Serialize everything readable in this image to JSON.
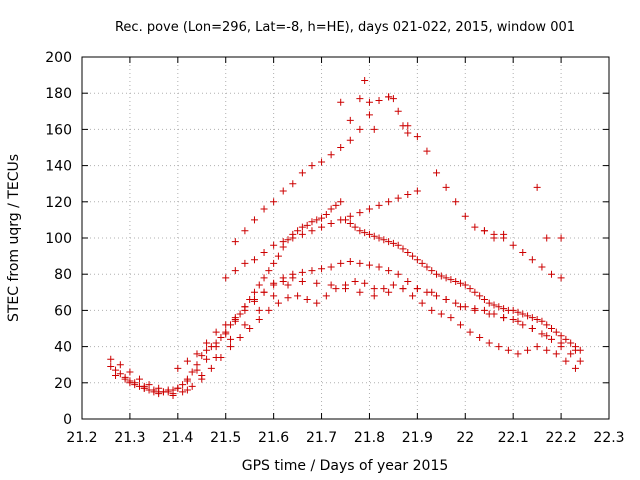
{
  "chart_data": {
    "type": "scatter",
    "title": "Rec. pove (Lon=296, Lat=-8, h=HE), days 021-022, 2015, window 001",
    "xlabel": "GPS time / Days of year 2015",
    "ylabel": "STEC from uqrg / TECUs",
    "xlim": [
      21.2,
      22.3
    ],
    "ylim": [
      0,
      200
    ],
    "x_ticks": [
      "21.2",
      "21.3",
      "21.4",
      "21.5",
      "21.6",
      "21.7",
      "21.8",
      "21.9",
      "22",
      "22.1",
      "22.2",
      "22.3"
    ],
    "y_ticks": [
      "0",
      "20",
      "40",
      "60",
      "80",
      "100",
      "120",
      "140",
      "160",
      "180",
      "200"
    ],
    "grid": true,
    "legend": "none",
    "marker": "plus",
    "color": "#cc0000",
    "series": [
      {
        "x": [
          21.26,
          21.27,
          21.28,
          21.29,
          21.3,
          21.31,
          21.32,
          21.33,
          21.34,
          21.35,
          21.36,
          21.37,
          21.38,
          21.39,
          21.4,
          21.41,
          21.42,
          21.43,
          21.44,
          21.45,
          21.46,
          21.47,
          21.48,
          21.49,
          21.5,
          21.51,
          21.52,
          21.53,
          21.54,
          21.55,
          21.56,
          21.57,
          21.58,
          21.59,
          21.6,
          21.61,
          21.62,
          21.63,
          21.64,
          21.65,
          21.66,
          21.67,
          21.68,
          21.69,
          21.7,
          21.71,
          21.72,
          21.73,
          21.74,
          21.75,
          21.76,
          21.77,
          21.78,
          21.79,
          21.8,
          21.81,
          21.82,
          21.83,
          21.84,
          21.85,
          21.86,
          21.87,
          21.88,
          21.89,
          21.9,
          21.91,
          21.92,
          21.93,
          21.94,
          21.95,
          21.96,
          21.97,
          21.98,
          21.99,
          22.0,
          22.01,
          22.02,
          22.03,
          22.04,
          22.05,
          22.06,
          22.07,
          22.08,
          22.09,
          22.1,
          22.11,
          22.12,
          22.13,
          22.14,
          22.15,
          22.16,
          22.17,
          22.18,
          22.19,
          22.2,
          22.21,
          22.22,
          22.23,
          22.24
        ],
        "y": [
          29,
          27,
          25,
          23,
          21,
          19,
          18,
          17,
          16,
          15,
          15,
          15,
          15,
          16,
          17,
          19,
          22,
          26,
          30,
          35,
          38,
          40,
          42,
          45,
          48,
          52,
          55,
          58,
          62,
          66,
          70,
          74,
          78,
          82,
          86,
          90,
          95,
          99,
          102,
          104,
          106,
          107,
          109,
          110,
          111,
          113,
          116,
          118,
          120,
          110,
          108,
          106,
          104,
          103,
          102,
          101,
          100,
          99,
          98,
          97,
          96,
          94,
          92,
          90,
          88,
          86,
          84,
          82,
          80,
          79,
          78,
          77,
          76,
          75,
          74,
          72,
          70,
          68,
          66,
          64,
          63,
          62,
          61,
          60,
          60,
          59,
          58,
          57,
          56,
          55,
          54,
          52,
          50,
          48,
          46,
          44,
          42,
          40,
          38
        ]
      },
      {
        "x": [
          21.26,
          21.28,
          21.3,
          21.32,
          21.34,
          21.36,
          21.38,
          21.4,
          21.42,
          21.44,
          21.46,
          21.48,
          21.5,
          21.52,
          21.54,
          21.56,
          21.58,
          21.6,
          21.62,
          21.64,
          21.66,
          21.68,
          21.7,
          21.72,
          21.74,
          21.76,
          21.78,
          21.8,
          21.82,
          21.84,
          21.86,
          21.88,
          21.9,
          21.92,
          21.94,
          21.96,
          21.98,
          22.0,
          22.02,
          22.04,
          22.06,
          22.08,
          22.1,
          22.12,
          22.14,
          22.16,
          22.18,
          22.2,
          22.22,
          22.24
        ],
        "y": [
          33,
          30,
          26,
          22,
          19,
          17,
          16,
          17,
          21,
          27,
          33,
          40,
          47,
          54,
          60,
          65,
          70,
          75,
          78,
          80,
          81,
          82,
          83,
          84,
          86,
          87,
          86,
          85,
          84,
          82,
          80,
          76,
          72,
          70,
          68,
          66,
          64,
          62,
          61,
          60,
          58,
          56,
          55,
          52,
          50,
          47,
          44,
          40,
          36,
          32
        ]
      },
      {
        "x": [
          21.27,
          21.29,
          21.31,
          21.33,
          21.35,
          21.37,
          21.39,
          21.41,
          21.43,
          21.45,
          21.47,
          21.49,
          21.51,
          21.53,
          21.55,
          21.57,
          21.59,
          21.61,
          21.63,
          21.65,
          21.67,
          21.69,
          21.71,
          21.73,
          21.75,
          21.77,
          21.79,
          21.81,
          21.83,
          21.85,
          21.87,
          21.89,
          21.91,
          21.93,
          21.95,
          21.97,
          21.99,
          22.01,
          22.03,
          22.05,
          22.07,
          22.09,
          22.11,
          22.13,
          22.15,
          22.17,
          22.19,
          22.21,
          22.23
        ],
        "y": [
          24,
          22,
          20,
          18,
          16,
          15,
          14,
          15,
          18,
          22,
          28,
          34,
          40,
          45,
          50,
          55,
          60,
          64,
          67,
          68,
          66,
          64,
          68,
          72,
          74,
          76,
          75,
          72,
          72,
          74,
          72,
          68,
          64,
          60,
          58,
          56,
          52,
          48,
          45,
          42,
          40,
          38,
          36,
          38,
          40,
          38,
          36,
          32,
          28
        ]
      },
      {
        "x": [
          21.3,
          21.33,
          21.36,
          21.39,
          21.42,
          21.45,
          21.48,
          21.51,
          21.54,
          21.57,
          21.6,
          21.63,
          21.66,
          21.69,
          21.72,
          21.75,
          21.78,
          21.81,
          21.84,
          21.87,
          21.9,
          21.93,
          21.96,
          21.99,
          22.02,
          22.05,
          22.08,
          22.11,
          22.14,
          22.17,
          22.2,
          22.23
        ],
        "y": [
          20,
          17,
          14,
          13,
          16,
          24,
          34,
          44,
          52,
          60,
          68,
          74,
          76,
          75,
          74,
          72,
          70,
          68,
          70,
          72,
          72,
          70,
          66,
          62,
          60,
          58,
          56,
          54,
          50,
          46,
          42,
          38
        ]
      },
      {
        "x": [
          21.52,
          21.54,
          21.56,
          21.58,
          21.6,
          21.62,
          21.64,
          21.66,
          21.68,
          21.7,
          21.72,
          21.74,
          21.76,
          21.78,
          21.8,
          21.82,
          21.84,
          21.86,
          21.88,
          21.9,
          21.92,
          21.94,
          21.96,
          21.98,
          22.0,
          22.02,
          22.04,
          22.06,
          22.08,
          22.1,
          22.12,
          22.14,
          22.16,
          22.18,
          22.2
        ],
        "y": [
          98,
          104,
          110,
          116,
          120,
          126,
          130,
          136,
          140,
          142,
          146,
          150,
          154,
          160,
          168,
          176,
          178,
          170,
          162,
          156,
          148,
          136,
          128,
          120,
          112,
          106,
          104,
          102,
          100,
          96,
          92,
          88,
          84,
          80,
          78
        ]
      },
      {
        "x": [
          21.5,
          21.52,
          21.54,
          21.56,
          21.58,
          21.6,
          21.62,
          21.64,
          21.66,
          21.68,
          21.7,
          21.72,
          21.74,
          21.76,
          21.78,
          21.8,
          21.82,
          21.84,
          21.86,
          21.88,
          21.9
        ],
        "y": [
          78,
          82,
          86,
          88,
          92,
          96,
          98,
          100,
          102,
          104,
          106,
          108,
          110,
          112,
          114,
          116,
          118,
          120,
          122,
          124,
          126
        ]
      },
      {
        "x": [
          21.4,
          21.42,
          21.44,
          21.46,
          21.48,
          21.5,
          21.52,
          21.54,
          21.56,
          21.58,
          21.6,
          21.62,
          21.64
        ],
        "y": [
          28,
          32,
          36,
          42,
          48,
          52,
          56,
          62,
          66,
          70,
          74,
          76,
          78
        ]
      },
      {
        "x": [
          21.74,
          21.76,
          21.78,
          21.79,
          21.8,
          21.81,
          21.84,
          21.85,
          21.87,
          21.88,
          22.15,
          22.17,
          22.2,
          22.04,
          22.06,
          22.08
        ],
        "y": [
          175,
          165,
          177,
          187,
          175,
          160,
          178,
          177,
          162,
          158,
          128,
          100,
          100,
          104,
          100,
          102
        ]
      }
    ]
  }
}
